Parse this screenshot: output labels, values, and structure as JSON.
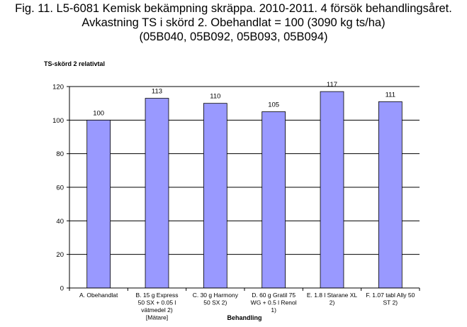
{
  "chart_data": {
    "type": "bar",
    "title": [
      "Fig. 11. L5-6081  Kemisk bekämpning skräppa. 2010-2011. 4 försök behandlingsåret.",
      "Avkastning TS i skörd 2. Obehandlat = 100 (3090 kg ts/ha)",
      "(05B040, 05B092, 05B093, 05B094)"
    ],
    "ylabel": "TS-skörd 2  relativtal",
    "xlabel": "Behandling",
    "ylim": [
      0,
      120
    ],
    "yticks": [
      "0",
      "20",
      "40",
      "60",
      "80",
      "100",
      "120"
    ],
    "grid": true,
    "legend": "none",
    "bar_color": "#9999ff",
    "categories": [
      [
        "A. Obehandlat"
      ],
      [
        "B.  15  g Express",
        "50 SX + 0.05 l",
        "vätmedel 2)",
        "[Mätare]"
      ],
      [
        "C.  30  g Harmony",
        "50 SX 2)"
      ],
      [
        "D.  60  g Gratil 75",
        "WG + 0.5 l Renol",
        "1)"
      ],
      [
        "E. 1.8   l Starane XL",
        "2)"
      ],
      [
        "F. 1.07 tabl Ally 50",
        "ST 2)"
      ]
    ],
    "values": [
      100,
      113,
      110,
      105,
      117,
      111
    ],
    "data_labels": [
      "100",
      "113",
      "110",
      "105",
      "117",
      "111"
    ]
  }
}
